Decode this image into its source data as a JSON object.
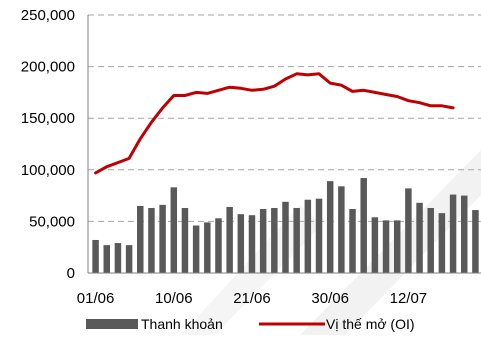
{
  "chart_data": {
    "type": "bar",
    "title": "",
    "xlabel": "",
    "ylabel": "",
    "ylim": [
      0,
      250000
    ],
    "yticks": [
      0,
      50000,
      100000,
      150000,
      200000,
      250000
    ],
    "ytick_labels": [
      "0",
      "50,000",
      "100,000",
      "150,000",
      "200,000",
      "250,000"
    ],
    "grid": "horizontal dashed",
    "legend_position": "bottom",
    "x_tick_labels": [
      {
        "label": "01/06",
        "index": 0
      },
      {
        "label": "10/06",
        "index": 7
      },
      {
        "label": "21/06",
        "index": 14
      },
      {
        "label": "30/06",
        "index": 21
      },
      {
        "label": "12/07",
        "index": 28
      }
    ],
    "series": [
      {
        "name": "Thanh khoản",
        "type": "bar",
        "color": "#595959",
        "values": [
          32000,
          27000,
          29000,
          27000,
          65000,
          63000,
          66000,
          83000,
          63000,
          46000,
          49000,
          53000,
          64000,
          57000,
          56000,
          62000,
          63000,
          69000,
          63000,
          71000,
          72000,
          89000,
          84000,
          62000,
          92000,
          54000,
          51000,
          51000,
          82000,
          68000,
          63000,
          58000,
          76000,
          75000,
          61000
        ]
      },
      {
        "name": "Vị thế mở (OI)",
        "type": "line",
        "color": "#c00000",
        "values": [
          97000,
          103000,
          107000,
          111000,
          130000,
          146000,
          160000,
          172000,
          172000,
          175000,
          174000,
          177000,
          180000,
          179000,
          177000,
          178000,
          181000,
          188000,
          193000,
          192000,
          193000,
          184000,
          182000,
          176000,
          177000,
          175000,
          173000,
          171000,
          167000,
          165000,
          162000,
          162000,
          160000
        ]
      }
    ]
  },
  "colors": {
    "bar": "#595959",
    "line": "#c00000",
    "grid": "#a6a6a6",
    "axis": "#808080"
  }
}
